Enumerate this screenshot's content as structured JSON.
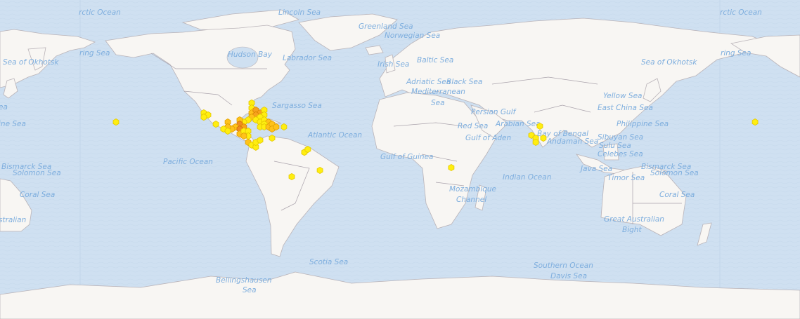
{
  "map": {
    "basemap_colors": {
      "ocean": "#cfe0f1",
      "land": "#f8f6f3",
      "border": "#a9a2ab",
      "label": "#7eaede"
    },
    "labels": [
      "rctic Ocean",
      "Lincoln Sea",
      "Greenland Sea",
      "Norwegian Sea",
      "Hudson Bay",
      "Labrador Sea",
      "ring Sea",
      "Sea of Okhotsk",
      "Irish Sea",
      "Baltic Sea",
      "Adriatic Sea",
      "Black Sea",
      "Mediterranean",
      "Sea",
      "Sargasso Sea",
      "Persian Gulf",
      "Yellow Sea",
      "East China Sea",
      "Philippine Sea",
      "Arabian Sea",
      "Bay of Bengal",
      "Red Sea",
      "Atlantic Ocean",
      "Gulf of Aden",
      "Andaman Sea",
      "Sibuyan Sea",
      "Sulu Sea",
      "Celebes Sea",
      "Pacific Ocean",
      "Gulf of Guinea",
      "Java Sea",
      "Bismarck Sea",
      "Solomon Sea",
      "Indian Ocean",
      "Timor Sea",
      "Mozambique",
      "Channel",
      "Coral Sea",
      "Great Australian",
      "Bight",
      "Scotia Sea",
      "Southern Ocean",
      "Davis Sea",
      "Bellingshausen",
      "Sea",
      "Sea of Okhotsk",
      "ine Sea",
      "Bismarck Sea",
      "Solomon Sea",
      "Coral Sea",
      "stralian",
      "rctic Ocean",
      "ring Sea",
      "ea"
    ],
    "hexbin_colors": {
      "1": "#ffee10",
      "2": "#ffc21a",
      "3": "#f7a21e",
      "4": "#f08c22"
    },
    "hexbin_stroke": {
      "1": "#e2c600",
      "2": "#e0a000",
      "3": "#d88400",
      "4": "#d07000"
    },
    "hexbins": [
      {
        "lon": -77.3,
        "lat": 27.4,
        "level": 1
      },
      {
        "lon": -77.3,
        "lat": 24.8,
        "level": 1
      },
      {
        "lon": -77.3,
        "lat": 22.2,
        "level": 2
      },
      {
        "lon": -74.9,
        "lat": 23.7,
        "level": 3
      },
      {
        "lon": -72.4,
        "lat": 22.2,
        "level": 3
      },
      {
        "lon": -74.9,
        "lat": 21.1,
        "level": 3
      },
      {
        "lon": -77.3,
        "lat": 19.9,
        "level": 2
      },
      {
        "lon": -70.0,
        "lat": 23.7,
        "level": 1
      },
      {
        "lon": -70.0,
        "lat": 21.1,
        "level": 1
      },
      {
        "lon": -72.4,
        "lat": 19.9,
        "level": 1
      },
      {
        "lon": -74.9,
        "lat": 18.4,
        "level": 1
      },
      {
        "lon": -72.4,
        "lat": 17.2,
        "level": 1
      },
      {
        "lon": -70.0,
        "lat": 18.4,
        "level": 1
      },
      {
        "lon": -67.5,
        "lat": 17.2,
        "level": 2
      },
      {
        "lon": -70.0,
        "lat": 16.0,
        "level": 1
      },
      {
        "lon": -72.4,
        "lat": 14.5,
        "level": 1
      },
      {
        "lon": -70.0,
        "lat": 14.5,
        "level": 1
      },
      {
        "lon": -67.5,
        "lat": 14.5,
        "level": 2
      },
      {
        "lon": -65.5,
        "lat": 16.0,
        "level": 2
      },
      {
        "lon": -65.5,
        "lat": 13.3,
        "level": 2
      },
      {
        "lon": -63.1,
        "lat": 14.5,
        "level": 2
      },
      {
        "lon": -58.6,
        "lat": 14.5,
        "level": 1
      },
      {
        "lon": -79.3,
        "lat": 18.4,
        "level": 1
      },
      {
        "lon": -81.8,
        "lat": 17.2,
        "level": 1
      },
      {
        "lon": -84.2,
        "lat": 18.4,
        "level": 2
      },
      {
        "lon": -84.2,
        "lat": 16.0,
        "level": 4
      },
      {
        "lon": -81.8,
        "lat": 14.5,
        "level": 3
      },
      {
        "lon": -86.7,
        "lat": 14.5,
        "level": 2
      },
      {
        "lon": -88.7,
        "lat": 13.3,
        "level": 2
      },
      {
        "lon": -91.1,
        "lat": 17.2,
        "level": 2
      },
      {
        "lon": -91.1,
        "lat": 14.5,
        "level": 2
      },
      {
        "lon": -93.6,
        "lat": 13.3,
        "level": 1
      },
      {
        "lon": -91.1,
        "lat": 12.1,
        "level": 1
      },
      {
        "lon": -84.2,
        "lat": 13.3,
        "level": 4
      },
      {
        "lon": -84.2,
        "lat": 10.5,
        "level": 2
      },
      {
        "lon": -81.8,
        "lat": 12.1,
        "level": 1
      },
      {
        "lon": -79.3,
        "lat": 12.1,
        "level": 1
      },
      {
        "lon": -79.3,
        "lat": 9.3,
        "level": 1
      },
      {
        "lon": -81.8,
        "lat": 9.3,
        "level": 2
      },
      {
        "lon": -79.3,
        "lat": 5.7,
        "level": 2
      },
      {
        "lon": -77.3,
        "lat": 4.1,
        "level": 1
      },
      {
        "lon": -74.9,
        "lat": 2.9,
        "level": 1
      },
      {
        "lon": -74.9,
        "lat": 5.7,
        "level": 1
      },
      {
        "lon": -72.4,
        "lat": 6.9,
        "level": 1
      },
      {
        "lon": -65.5,
        "lat": 8.1,
        "level": 1
      },
      {
        "lon": -98.0,
        "lat": 16.0,
        "level": 1
      },
      {
        "lon": -105.0,
        "lat": 22.2,
        "level": 1
      },
      {
        "lon": -102.5,
        "lat": 21.1,
        "level": 1
      },
      {
        "lon": -105.0,
        "lat": 19.9,
        "level": 1
      },
      {
        "lon": -46.8,
        "lat": -0.1,
        "level": 1
      },
      {
        "lon": -44.8,
        "lat": 1.6,
        "level": 1
      },
      {
        "lon": -37.8,
        "lat": -10.5,
        "level": 1
      },
      {
        "lon": -54.1,
        "lat": -14.1,
        "level": 1
      },
      {
        "lon": -155.8,
        "lat": 17.2,
        "level": 1
      },
      {
        "lon": 38.2,
        "lat": -8.9,
        "level": 1
      },
      {
        "lon": 89.5,
        "lat": 14.9,
        "level": 1
      },
      {
        "lon": 84.6,
        "lat": 9.7,
        "level": 1
      },
      {
        "lon": 87.1,
        "lat": 8.1,
        "level": 1
      },
      {
        "lon": 87.1,
        "lat": 5.7,
        "level": 1
      },
      {
        "lon": 91.5,
        "lat": 8.1,
        "level": 1
      },
      {
        "lon": 214.0,
        "lat": 17.2,
        "level": 1
      }
    ]
  }
}
